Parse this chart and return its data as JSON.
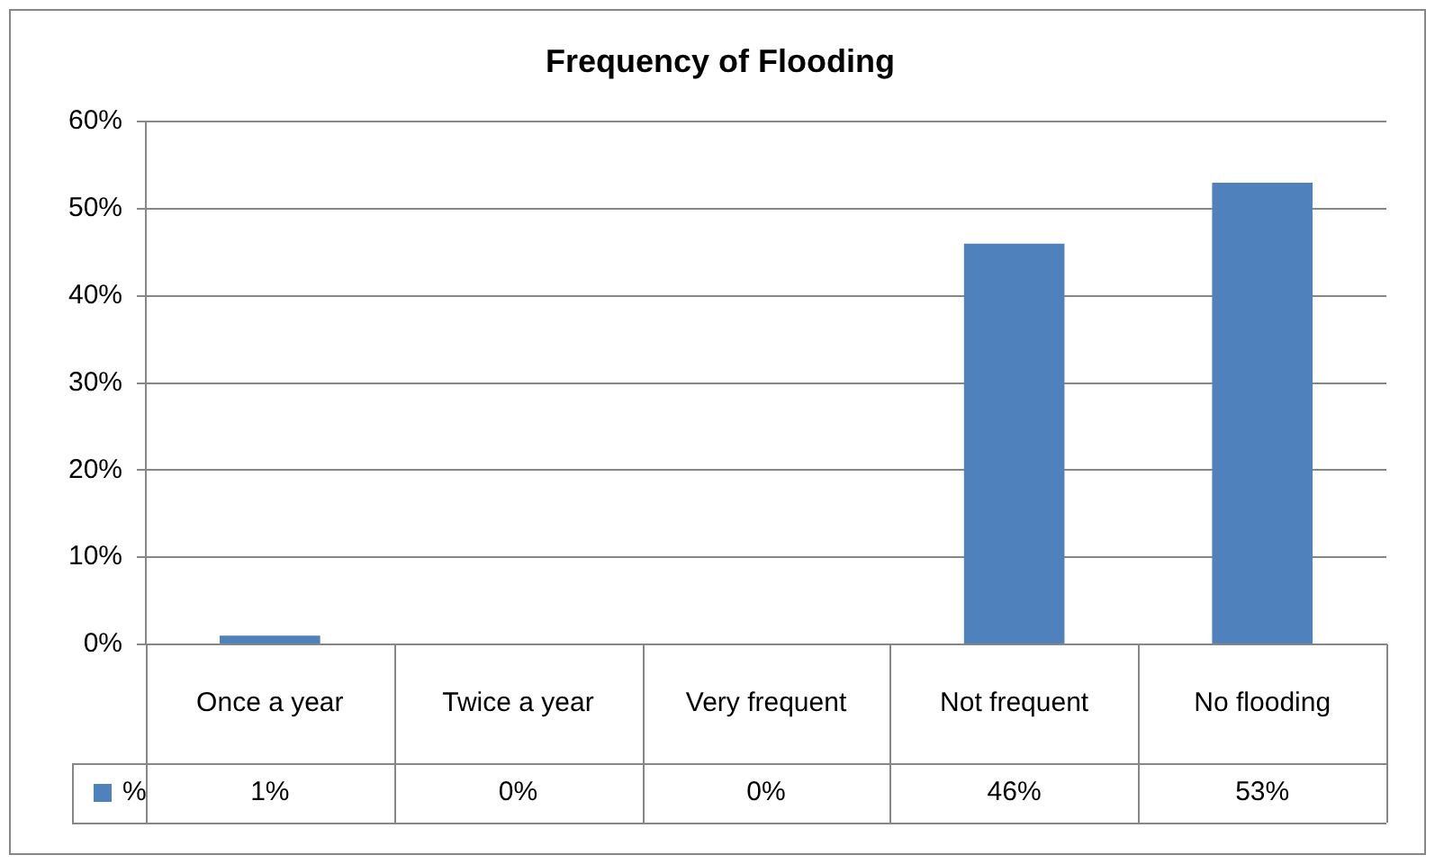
{
  "chart_data": {
    "type": "bar",
    "title": "Frequency of Flooding",
    "categories": [
      "Once a year",
      "Twice a year",
      "Very frequent",
      "Not frequent",
      "No flooding"
    ],
    "series": [
      {
        "name": "%",
        "color": "#4f81bd",
        "values": [
          1,
          0,
          0,
          46,
          53
        ],
        "value_labels": [
          "1%",
          "0%",
          "0%",
          "46%",
          "53%"
        ]
      }
    ],
    "ylim": [
      0,
      60
    ],
    "yticks": [
      {
        "value": 0,
        "label": "0%"
      },
      {
        "value": 10,
        "label": "10%"
      },
      {
        "value": 20,
        "label": "20%"
      },
      {
        "value": 30,
        "label": "30%"
      },
      {
        "value": 40,
        "label": "40%"
      },
      {
        "value": 50,
        "label": "50%"
      },
      {
        "value": 60,
        "label": "60%"
      }
    ],
    "grid": "y",
    "legend": "bottom left"
  }
}
